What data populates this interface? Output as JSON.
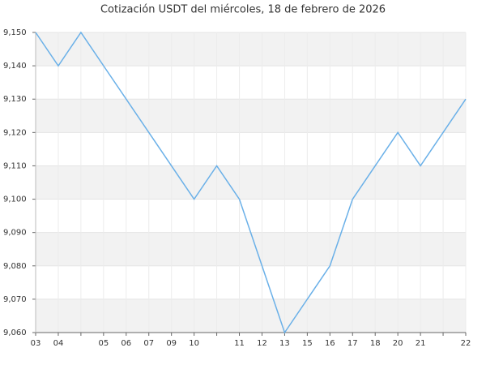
{
  "chart_data": {
    "type": "line",
    "title": "Cotización USDT del miércoles, 18 de febrero de 2026",
    "categories": [
      "03",
      "04",
      null,
      "05",
      "06",
      "07",
      "09",
      "10",
      null,
      "11",
      "12",
      "13",
      "15",
      "16",
      "17",
      "18",
      "20",
      "21",
      null,
      "22"
    ],
    "series": [
      {
        "color": "#6ab0e8",
        "values": [
          9150,
          9140,
          9150,
          9140,
          9130,
          9120,
          9110,
          9100,
          9110,
          9100,
          9080,
          9060,
          9070,
          9080,
          9100,
          9110,
          9120,
          9110,
          9120,
          9130
        ]
      }
    ],
    "ylim": [
      9060,
      9150
    ],
    "yticks": [
      {
        "value": 9060,
        "label": "9,060"
      },
      {
        "value": 9070,
        "label": "9,070"
      },
      {
        "value": 9080,
        "label": "9,080"
      },
      {
        "value": 9090,
        "label": "9,090"
      },
      {
        "value": 9100,
        "label": "9,100"
      },
      {
        "value": 9110,
        "label": "9,110"
      },
      {
        "value": 9120,
        "label": "9,120"
      },
      {
        "value": 9130,
        "label": "9,130"
      },
      {
        "value": 9140,
        "label": "9,140"
      },
      {
        "value": 9150,
        "label": "9,150"
      }
    ],
    "grid": true
  }
}
